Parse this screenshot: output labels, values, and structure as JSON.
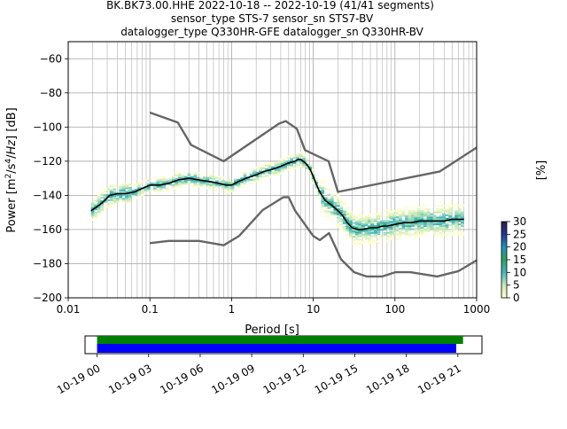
{
  "title": {
    "line1": "BK.BK73.00.HHE   2022-10-18 -- 2022-10-19  (41/41 segments)",
    "line2": "sensor_type STS-7 sensor_sn STS7-BV",
    "line3": "datalogger_type Q330HR-GFE datalogger_sn Q330HR-BV"
  },
  "chart_data": [
    {
      "type": "heatmap",
      "description_role": "probabilistic power spectral density",
      "xlabel": "Period [s]",
      "ylabel": "Power [m²/s⁴/Hz] [dB]",
      "xscale": "log",
      "xlim": [
        0.01,
        1000
      ],
      "ylim": [
        -200,
        -50
      ],
      "xtick_labels": [
        {
          "v": 0.01,
          "t": "0.01"
        },
        {
          "v": 0.1,
          "t": "0.1"
        },
        {
          "v": 1,
          "t": "1"
        },
        {
          "v": 10,
          "t": "10"
        },
        {
          "v": 100,
          "t": "100"
        },
        {
          "v": 1000,
          "t": "1000"
        }
      ],
      "ytick_labels": [
        {
          "v": -60,
          "t": "−60"
        },
        {
          "v": -80,
          "t": "−80"
        },
        {
          "v": -100,
          "t": "−100"
        },
        {
          "v": -120,
          "t": "−120"
        },
        {
          "v": -140,
          "t": "−140"
        },
        {
          "v": -160,
          "t": "−160"
        },
        {
          "v": -180,
          "t": "−180"
        },
        {
          "v": -200,
          "t": "−200"
        }
      ],
      "grid": true,
      "colorbar": {
        "label": "[%]",
        "range": [
          0,
          30
        ],
        "ticks": [
          {
            "v": 0,
            "t": "0"
          },
          {
            "v": 5,
            "t": "5"
          },
          {
            "v": 10,
            "t": "10"
          },
          {
            "v": 15,
            "t": "15"
          },
          {
            "v": 20,
            "t": "20"
          },
          {
            "v": 25,
            "t": "25"
          },
          {
            "v": 30,
            "t": "30"
          }
        ],
        "colors": [
          "#ffffcc",
          "#c7e9b4",
          "#41b6c4",
          "#2ca25f",
          "#1d91c0",
          "#253494",
          "#2d1e3e"
        ]
      },
      "series": [
        {
          "role": "mode",
          "color": "#000000",
          "x": [
            0.019,
            0.022,
            0.025,
            0.028,
            0.032,
            0.04,
            0.05,
            0.065,
            0.08,
            0.1,
            0.13,
            0.17,
            0.22,
            0.3,
            0.4,
            0.55,
            0.7,
            0.85,
            1.0,
            1.2,
            1.5,
            2.0,
            2.5,
            3.0,
            3.5,
            4.0,
            5.0,
            6.0,
            6.5,
            7.0,
            8.0,
            9.0,
            10,
            11,
            12,
            14,
            16,
            18,
            20,
            23,
            26,
            30,
            35,
            40,
            50,
            60,
            70,
            80,
            100,
            130,
            160,
            200,
            250,
            300,
            400,
            500,
            600,
            700
          ],
          "y": [
            -149,
            -147,
            -145,
            -143,
            -140,
            -139,
            -139,
            -138,
            -136,
            -134,
            -134,
            -133,
            -131,
            -130,
            -131,
            -132,
            -133,
            -134,
            -134,
            -132,
            -130,
            -128,
            -126,
            -125,
            -124,
            -123,
            -121,
            -120,
            -119,
            -119,
            -121,
            -124,
            -129,
            -134,
            -138,
            -143,
            -145,
            -147,
            -149,
            -152,
            -156,
            -159,
            -160,
            -160,
            -159,
            -159,
            -158,
            -158,
            -157,
            -156,
            -156,
            -155,
            -155,
            -155,
            -155,
            -154,
            -154,
            -154
          ]
        },
        {
          "role": "noise model (upper)",
          "color": "#666666",
          "x": [
            0.1,
            0.22,
            0.32,
            0.8,
            3.8,
            4.6,
            6.3,
            7.9,
            15.4,
            20,
            354.8,
            1000
          ],
          "y": [
            -91.5,
            -97.4,
            -110.5,
            -120,
            -98,
            -96.5,
            -101,
            -113.5,
            -120,
            -138,
            -126,
            -112
          ]
        },
        {
          "role": "noise model (lower)",
          "color": "#666666",
          "x": [
            0.1,
            0.17,
            0.4,
            0.8,
            1.24,
            2.4,
            4.3,
            5.0,
            6.0,
            10.0,
            12.0,
            15.6,
            21.9,
            31.6,
            45.0,
            70.0,
            101.0,
            154.0,
            328.0,
            600.0,
            1000
          ],
          "y": [
            -168,
            -166.7,
            -166.7,
            -169.2,
            -163.7,
            -148.6,
            -141.1,
            -141.1,
            -149.0,
            -163.8,
            -166.2,
            -162.1,
            -177.5,
            -185.0,
            -187.5,
            -187.5,
            -185.0,
            -185.0,
            -187.5,
            -184.4,
            -178
          ]
        }
      ]
    },
    {
      "type": "timeline",
      "tick_labels": [
        "10-19 00",
        "10-19 03",
        "10-19 06",
        "10-19 09",
        "10-19 12",
        "10-19 15",
        "10-19 18",
        "10-19 21"
      ],
      "tick_hours": [
        0,
        3,
        6,
        9,
        12,
        15,
        18,
        21
      ],
      "xlim_hours": [
        -0.7,
        22.4
      ],
      "series": [
        {
          "role": "data availability",
          "color": "#008000",
          "start_hour": 0,
          "end_hour": 21.3
        },
        {
          "role": "processed segments",
          "color": "#0000ff",
          "start_hour": 0,
          "end_hour": 20.9
        }
      ]
    }
  ]
}
